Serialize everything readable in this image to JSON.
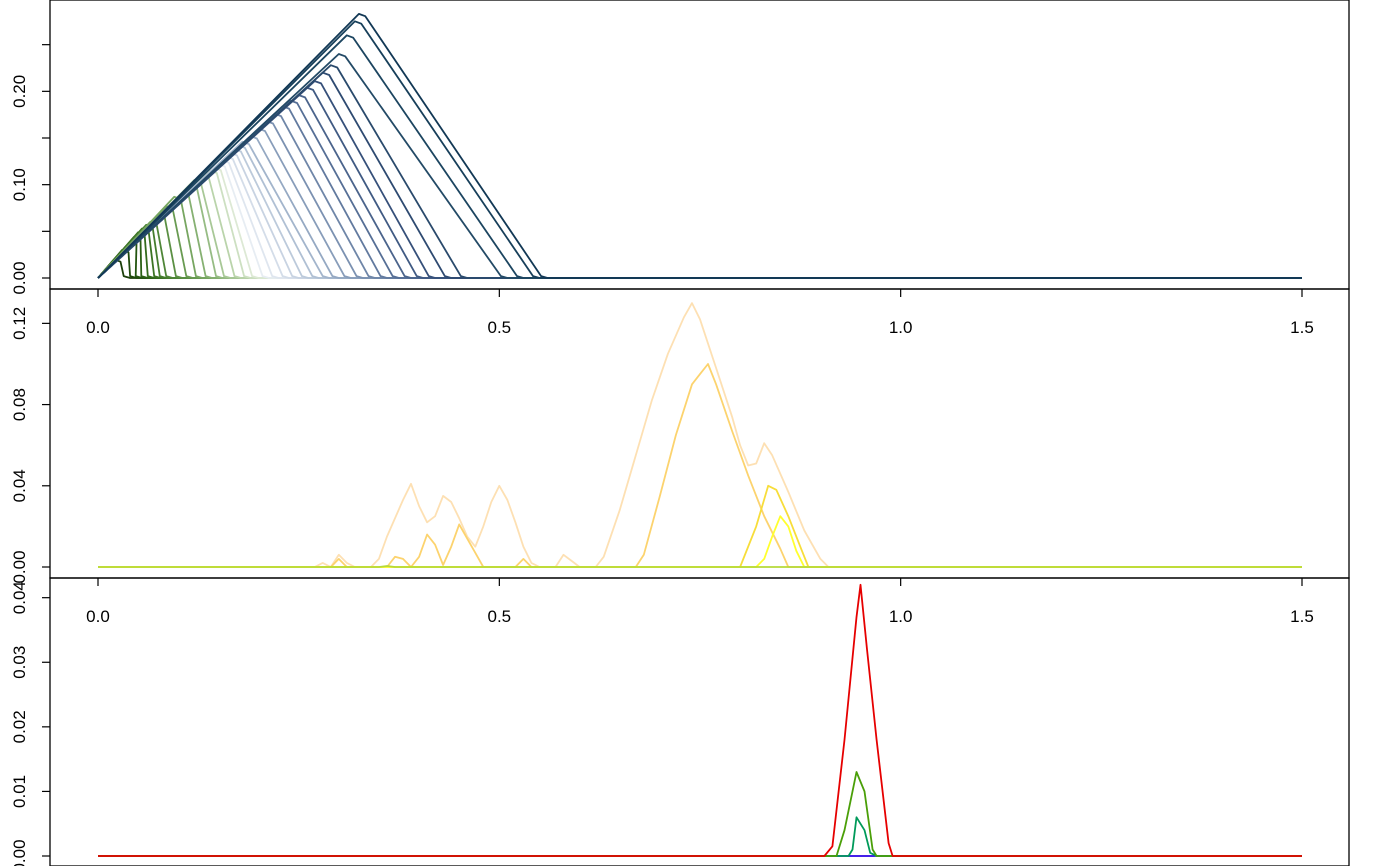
{
  "chart_data": [
    {
      "type": "line",
      "title": "",
      "xlabel": "",
      "ylabel": "",
      "xlim": [
        0,
        1.5
      ],
      "ylim": [
        0,
        0.285
      ],
      "xticks": [
        {
          "v": 0,
          "label": "0.0"
        },
        {
          "v": 0.5,
          "label": "0.5"
        },
        {
          "v": 1,
          "label": "1.0"
        },
        {
          "v": 1.5,
          "label": "1.5"
        }
      ],
      "yticks": [
        {
          "v": 0,
          "label": "0.00"
        },
        {
          "v": 0.05,
          "label": ""
        },
        {
          "v": 0.1,
          "label": "0.10"
        },
        {
          "v": 0.15,
          "label": ""
        },
        {
          "v": 0.2,
          "label": "0.20"
        },
        {
          "v": 0.25,
          "label": ""
        }
      ],
      "grid": false,
      "family": "triangles",
      "series": [
        {
          "color": "#1c3f0a",
          "peak_x": 0.02,
          "peak_y": 0.02,
          "end_x": 0.04
        },
        {
          "color": "#1f4a0c",
          "peak_x": 0.03,
          "peak_y": 0.03,
          "end_x": 0.048
        },
        {
          "color": "#235510",
          "peak_x": 0.04,
          "peak_y": 0.039,
          "end_x": 0.055
        },
        {
          "color": "#2b6015",
          "peak_x": 0.045,
          "peak_y": 0.044,
          "end_x": 0.062
        },
        {
          "color": "#336b1c",
          "peak_x": 0.05,
          "peak_y": 0.049,
          "end_x": 0.07
        },
        {
          "color": "#3c7424",
          "peak_x": 0.055,
          "peak_y": 0.053,
          "end_x": 0.078
        },
        {
          "color": "#457d2e",
          "peak_x": 0.06,
          "peak_y": 0.057,
          "end_x": 0.085
        },
        {
          "color": "#4f8638",
          "peak_x": 0.065,
          "peak_y": 0.06,
          "end_x": 0.093
        },
        {
          "color": "#5b9044",
          "peak_x": 0.075,
          "peak_y": 0.068,
          "end_x": 0.105
        },
        {
          "color": "#699b52",
          "peak_x": 0.085,
          "peak_y": 0.077,
          "end_x": 0.118
        },
        {
          "color": "#77a661",
          "peak_x": 0.095,
          "peak_y": 0.087,
          "end_x": 0.13
        },
        {
          "color": "#86b172",
          "peak_x": 0.105,
          "peak_y": 0.091,
          "end_x": 0.142
        },
        {
          "color": "#96bc84",
          "peak_x": 0.115,
          "peak_y": 0.1,
          "end_x": 0.155
        },
        {
          "color": "#a8c897",
          "peak_x": 0.12,
          "peak_y": 0.105,
          "end_x": 0.165
        },
        {
          "color": "#bad4ab",
          "peak_x": 0.13,
          "peak_y": 0.11,
          "end_x": 0.178
        },
        {
          "color": "#cde0c2",
          "peak_x": 0.14,
          "peak_y": 0.115,
          "end_x": 0.19
        },
        {
          "color": "#dde9d5",
          "peak_x": 0.145,
          "peak_y": 0.118,
          "end_x": 0.2
        },
        {
          "color": "#e7edf3",
          "peak_x": 0.15,
          "peak_y": 0.122,
          "end_x": 0.213
        },
        {
          "color": "#dfe6ef",
          "peak_x": 0.155,
          "peak_y": 0.126,
          "end_x": 0.225
        },
        {
          "color": "#d4dde9",
          "peak_x": 0.16,
          "peak_y": 0.13,
          "end_x": 0.238
        },
        {
          "color": "#c8d3e2",
          "peak_x": 0.165,
          "peak_y": 0.134,
          "end_x": 0.25
        },
        {
          "color": "#bccadb",
          "peak_x": 0.17,
          "peak_y": 0.138,
          "end_x": 0.262
        },
        {
          "color": "#b0c0d4",
          "peak_x": 0.175,
          "peak_y": 0.142,
          "end_x": 0.275
        },
        {
          "color": "#a3b5cc",
          "peak_x": 0.18,
          "peak_y": 0.146,
          "end_x": 0.288
        },
        {
          "color": "#95a9c3",
          "peak_x": 0.19,
          "peak_y": 0.152,
          "end_x": 0.3
        },
        {
          "color": "#889dba",
          "peak_x": 0.2,
          "peak_y": 0.16,
          "end_x": 0.315
        },
        {
          "color": "#7b91b1",
          "peak_x": 0.21,
          "peak_y": 0.168,
          "end_x": 0.33
        },
        {
          "color": "#6f86a8",
          "peak_x": 0.22,
          "peak_y": 0.176,
          "end_x": 0.345
        },
        {
          "color": "#627a9f",
          "peak_x": 0.23,
          "peak_y": 0.184,
          "end_x": 0.36
        },
        {
          "color": "#566f96",
          "peak_x": 0.24,
          "peak_y": 0.19,
          "end_x": 0.375
        },
        {
          "color": "#4b648c",
          "peak_x": 0.25,
          "peak_y": 0.196,
          "end_x": 0.39
        },
        {
          "color": "#405a83",
          "peak_x": 0.26,
          "peak_y": 0.204,
          "end_x": 0.405
        },
        {
          "color": "#36507a",
          "peak_x": 0.27,
          "peak_y": 0.211,
          "end_x": 0.42
        },
        {
          "color": "#2e4a71",
          "peak_x": 0.28,
          "peak_y": 0.22,
          "end_x": 0.44
        },
        {
          "color": "#2a4a6c",
          "peak_x": 0.29,
          "peak_y": 0.228,
          "end_x": 0.46
        },
        {
          "color": "#234a66",
          "peak_x": 0.3,
          "peak_y": 0.24,
          "end_x": 0.51
        },
        {
          "color": "#1c4560",
          "peak_x": 0.31,
          "peak_y": 0.26,
          "end_x": 0.53
        },
        {
          "color": "#173f5a",
          "peak_x": 0.32,
          "peak_y": 0.275,
          "end_x": 0.55
        },
        {
          "color": "#123855",
          "peak_x": 0.325,
          "peak_y": 0.283,
          "end_x": 0.56
        }
      ]
    },
    {
      "type": "line",
      "title": "",
      "xlabel": "",
      "ylabel": "",
      "xlim": [
        0,
        1.5
      ],
      "ylim": [
        0,
        0.132
      ],
      "xticks": [
        {
          "v": 0,
          "label": "0.0"
        },
        {
          "v": 0.5,
          "label": "0.5"
        },
        {
          "v": 1,
          "label": "1.0"
        },
        {
          "v": 1.5,
          "label": "1.5"
        }
      ],
      "yticks": [
        {
          "v": 0,
          "label": "0.00"
        },
        {
          "v": 0.04,
          "label": "0.04"
        },
        {
          "v": 0.08,
          "label": "0.08"
        },
        {
          "v": 0.12,
          "label": "0.12"
        }
      ],
      "grid": false,
      "series": [
        {
          "color": "#fde0b3",
          "points": [
            [
              0,
              0
            ],
            [
              0.27,
              0
            ],
            [
              0.28,
              0.002
            ],
            [
              0.29,
              0
            ],
            [
              0.3,
              0.006
            ],
            [
              0.31,
              0.002
            ],
            [
              0.32,
              0
            ],
            [
              0.34,
              0
            ],
            [
              0.35,
              0.004
            ],
            [
              0.36,
              0.015
            ],
            [
              0.38,
              0.033
            ],
            [
              0.39,
              0.041
            ],
            [
              0.4,
              0.03
            ],
            [
              0.41,
              0.022
            ],
            [
              0.42,
              0.025
            ],
            [
              0.43,
              0.035
            ],
            [
              0.44,
              0.032
            ],
            [
              0.45,
              0.024
            ],
            [
              0.46,
              0.015
            ],
            [
              0.47,
              0.01
            ],
            [
              0.48,
              0.02
            ],
            [
              0.49,
              0.032
            ],
            [
              0.5,
              0.04
            ],
            [
              0.51,
              0.033
            ],
            [
              0.52,
              0.022
            ],
            [
              0.53,
              0.01
            ],
            [
              0.54,
              0.002
            ],
            [
              0.55,
              0
            ],
            [
              0.57,
              0
            ],
            [
              0.58,
              0.006
            ],
            [
              0.59,
              0.003
            ],
            [
              0.6,
              0
            ],
            [
              0.62,
              0
            ],
            [
              0.63,
              0.005
            ],
            [
              0.65,
              0.028
            ],
            [
              0.67,
              0.055
            ],
            [
              0.69,
              0.082
            ],
            [
              0.71,
              0.105
            ],
            [
              0.73,
              0.123
            ],
            [
              0.74,
              0.13
            ],
            [
              0.75,
              0.122
            ],
            [
              0.77,
              0.098
            ],
            [
              0.79,
              0.074
            ],
            [
              0.8,
              0.06
            ],
            [
              0.81,
              0.05
            ],
            [
              0.82,
              0.051
            ],
            [
              0.83,
              0.061
            ],
            [
              0.84,
              0.055
            ],
            [
              0.86,
              0.037
            ],
            [
              0.88,
              0.018
            ],
            [
              0.9,
              0.004
            ],
            [
              0.91,
              0
            ],
            [
              1.5,
              0
            ]
          ]
        },
        {
          "color": "#fcd36e",
          "points": [
            [
              0,
              0
            ],
            [
              0.29,
              0
            ],
            [
              0.3,
              0.004
            ],
            [
              0.31,
              0
            ],
            [
              0.36,
              0
            ],
            [
              0.37,
              0.005
            ],
            [
              0.38,
              0.004
            ],
            [
              0.39,
              0
            ],
            [
              0.4,
              0.005
            ],
            [
              0.41,
              0.016
            ],
            [
              0.42,
              0.011
            ],
            [
              0.43,
              0.001
            ],
            [
              0.44,
              0.01
            ],
            [
              0.45,
              0.021
            ],
            [
              0.46,
              0.014
            ],
            [
              0.47,
              0.007
            ],
            [
              0.48,
              0
            ],
            [
              0.52,
              0
            ],
            [
              0.53,
              0.004
            ],
            [
              0.54,
              0
            ],
            [
              0.67,
              0
            ],
            [
              0.68,
              0.006
            ],
            [
              0.7,
              0.035
            ],
            [
              0.72,
              0.065
            ],
            [
              0.74,
              0.09
            ],
            [
              0.75,
              0.095
            ],
            [
              0.76,
              0.1
            ],
            [
              0.77,
              0.09
            ],
            [
              0.79,
              0.067
            ],
            [
              0.81,
              0.045
            ],
            [
              0.83,
              0.025
            ],
            [
              0.85,
              0.009
            ],
            [
              0.86,
              0
            ],
            [
              1.5,
              0
            ]
          ]
        },
        {
          "color": "#f7dd3a",
          "points": [
            [
              0,
              0
            ],
            [
              0.8,
              0
            ],
            [
              0.82,
              0.02
            ],
            [
              0.835,
              0.04
            ],
            [
              0.845,
              0.038
            ],
            [
              0.86,
              0.025
            ],
            [
              0.875,
              0.01
            ],
            [
              0.885,
              0
            ],
            [
              1.5,
              0
            ]
          ]
        },
        {
          "color": "#ffff2e",
          "points": [
            [
              0,
              0
            ],
            [
              0.82,
              0
            ],
            [
              0.83,
              0.004
            ],
            [
              0.84,
              0.015
            ],
            [
              0.85,
              0.025
            ],
            [
              0.86,
              0.02
            ],
            [
              0.87,
              0.008
            ],
            [
              0.88,
              0
            ],
            [
              1.5,
              0
            ]
          ]
        },
        {
          "color": "#b6d93a",
          "points": [
            [
              0,
              0
            ],
            [
              0.35,
              0
            ],
            [
              0.36,
              0.0005
            ],
            [
              0.37,
              0
            ],
            [
              1.5,
              0
            ]
          ]
        }
      ]
    },
    {
      "type": "line",
      "title": "",
      "xlabel": "",
      "ylabel": "",
      "xlim": [
        0,
        1.5
      ],
      "ylim": [
        0,
        0.0415
      ],
      "xticks": [
        {
          "v": 0,
          "label": "0.0"
        },
        {
          "v": 0.5,
          "label": "0.5"
        },
        {
          "v": 1,
          "label": "1.0"
        },
        {
          "v": 1.5,
          "label": "1.5"
        }
      ],
      "yticks": [
        {
          "v": 0,
          "label": "0.00"
        },
        {
          "v": 0.01,
          "label": "0.01"
        },
        {
          "v": 0.02,
          "label": "0.02"
        },
        {
          "v": 0.03,
          "label": "0.03"
        },
        {
          "v": 0.04,
          "label": "0.04"
        }
      ],
      "grid": false,
      "series": [
        {
          "color": "#2a00e6",
          "points": [
            [
              0,
              0
            ],
            [
              1.5,
              0
            ]
          ]
        },
        {
          "color": "#009a5a",
          "points": [
            [
              0,
              0
            ],
            [
              0.935,
              0
            ],
            [
              0.94,
              0.001
            ],
            [
              0.945,
              0.006
            ],
            [
              0.955,
              0.004
            ],
            [
              0.962,
              0.0005
            ],
            [
              0.97,
              0
            ],
            [
              1.5,
              0
            ]
          ]
        },
        {
          "color": "#4a9f08",
          "points": [
            [
              0,
              0
            ],
            [
              0.92,
              0
            ],
            [
              0.93,
              0.004
            ],
            [
              0.94,
              0.01
            ],
            [
              0.945,
              0.013
            ],
            [
              0.955,
              0.01
            ],
            [
              0.965,
              0.001
            ],
            [
              0.97,
              0
            ],
            [
              1.5,
              0
            ]
          ]
        },
        {
          "color": "#e60000",
          "points": [
            [
              0,
              0
            ],
            [
              0.905,
              0
            ],
            [
              0.915,
              0.0015
            ],
            [
              0.93,
              0.018
            ],
            [
              0.945,
              0.037
            ],
            [
              0.95,
              0.042
            ],
            [
              0.958,
              0.032
            ],
            [
              0.97,
              0.018
            ],
            [
              0.985,
              0.002
            ],
            [
              0.99,
              0
            ],
            [
              1.5,
              0
            ]
          ]
        }
      ]
    }
  ]
}
